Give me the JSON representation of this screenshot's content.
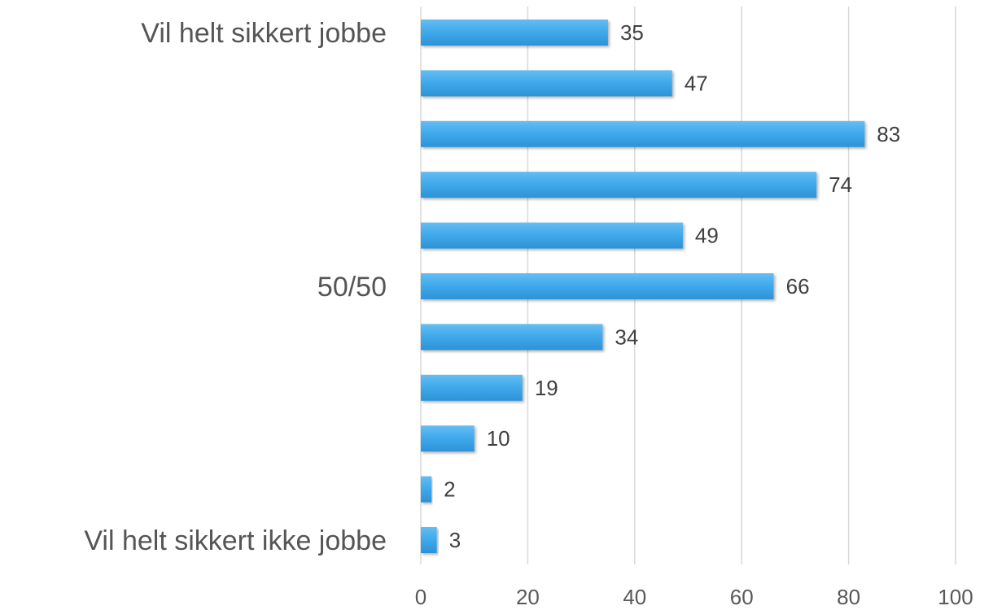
{
  "chart_data": {
    "type": "bar",
    "orientation": "horizontal",
    "categories": [
      "Vil helt sikkert jobbe",
      "",
      "",
      "",
      "",
      "50/50",
      "",
      "",
      "",
      "",
      "Vil helt sikkert ikke jobbe"
    ],
    "values": [
      35,
      47,
      83,
      74,
      49,
      66,
      34,
      19,
      10,
      2,
      3
    ],
    "xlim": [
      0,
      100
    ],
    "x_ticks": [
      0,
      20,
      40,
      60,
      80,
      100
    ],
    "title": "",
    "xlabel": "",
    "ylabel": "",
    "grid": "vertical",
    "legend": "none",
    "bar_color": "#3ea8ea",
    "bar_color_light": "#64bdf2",
    "bar_color_dark": "#2d92d6"
  }
}
